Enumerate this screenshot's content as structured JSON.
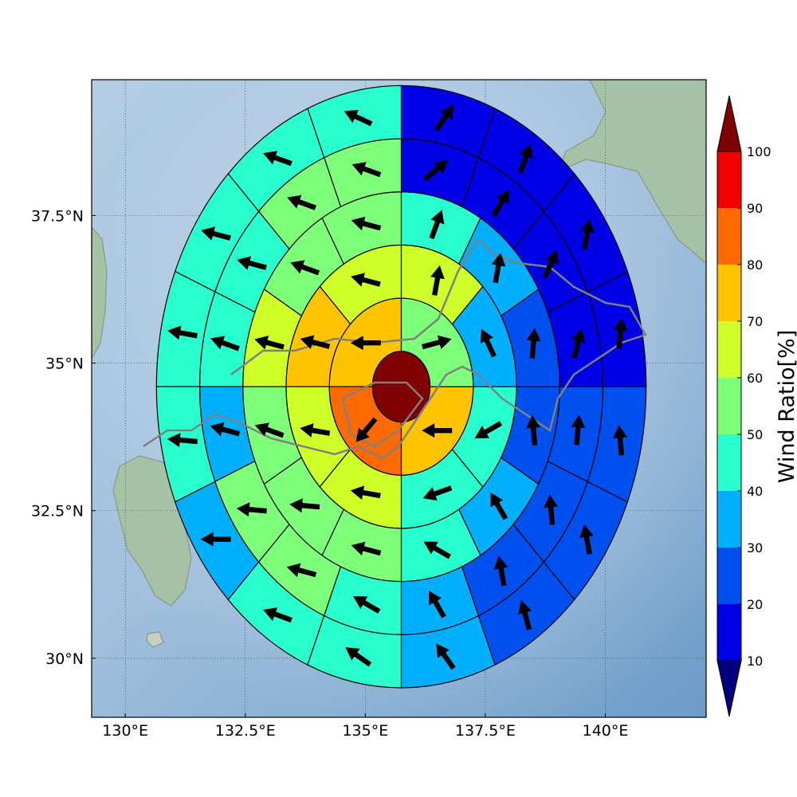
{
  "chart_data": {
    "type": "polar-sector-map",
    "x_ticks": [
      "130°E",
      "132.5°E",
      "135°E",
      "137.5°E",
      "140°E"
    ],
    "x_tick_values": [
      130,
      132.5,
      135,
      137.5,
      140
    ],
    "y_ticks": [
      "37.5°N",
      "35°N",
      "32.5°N",
      "30°N"
    ],
    "y_tick_values": [
      37.5,
      35,
      32.5,
      30
    ],
    "xlim": [
      129.3,
      142.1
    ],
    "ylim": [
      29.0,
      39.8
    ],
    "center": {
      "lon": 135.75,
      "lat": 34.6
    },
    "ring_edges_deg": [
      0.6,
      1.5,
      2.4,
      3.3,
      4.2,
      5.1
    ],
    "sector_start_deg": [
      90,
      90,
      90,
      90,
      90
    ],
    "sector_counts": [
      4,
      8,
      12,
      16,
      16
    ],
    "grid": true,
    "colorbar": {
      "label": "Wind Ratio[%]",
      "ticks": [
        "10",
        "20",
        "30",
        "40",
        "50",
        "60",
        "70",
        "80",
        "90",
        "100"
      ],
      "levels": [
        10,
        20,
        30,
        40,
        50,
        60,
        70,
        80,
        90,
        100
      ],
      "colors": [
        "#0000e6",
        "#0050f0",
        "#00b0ff",
        "#29ffce",
        "#7dff7a",
        "#cfff29",
        "#ffc400",
        "#ff6a00",
        "#f20000"
      ],
      "under_color": "#00007f",
      "over_color": "#7f0000",
      "extend": "both"
    },
    "center_value": 100,
    "rings": [
      {
        "values": [
          75,
          80,
          75,
          55
        ],
        "directions": [
          180,
          230,
          180,
          15
        ]
      },
      {
        "values": [
          65,
          70,
          65,
          60,
          45,
          40,
          35,
          60
        ],
        "directions": [
          165,
          165,
          170,
          170,
          200,
          210,
          115,
          80
        ]
      },
      {
        "values": [
          55,
          55,
          60,
          55,
          55,
          55,
          45,
          35,
          25,
          25,
          35,
          45
        ],
        "directions": [
          165,
          160,
          165,
          160,
          175,
          165,
          150,
          120,
          95,
          85,
          80,
          70
        ]
      },
      {
        "values": [
          50,
          50,
          45,
          40,
          35,
          50,
          50,
          45,
          35,
          25,
          25,
          20,
          15,
          15,
          15,
          10
        ],
        "directions": [
          160,
          160,
          165,
          160,
          165,
          175,
          165,
          150,
          120,
          100,
          95,
          85,
          75,
          65,
          60,
          40
        ]
      },
      {
        "values": [
          40,
          40,
          40,
          40,
          40,
          30,
          40,
          40,
          30,
          25,
          20,
          20,
          15,
          15,
          15,
          15
        ],
        "directions": [
          155,
          160,
          165,
          170,
          175,
          180,
          160,
          145,
          125,
          105,
          100,
          95,
          85,
          80,
          70,
          55
        ]
      }
    ]
  }
}
